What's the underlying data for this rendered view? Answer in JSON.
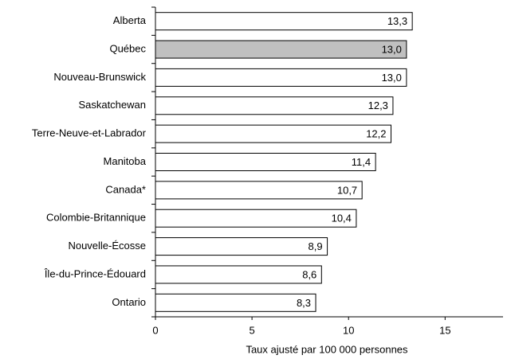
{
  "chart_data": {
    "type": "hbar",
    "categories": [
      "Alberta",
      "Québec",
      "Nouveau-Brunswick",
      "Saskatchewan",
      "Terre-Neuve-et-Labrador",
      "Manitoba",
      "Canada*",
      "Colombie-Britannique",
      "Nouvelle-Écosse",
      "Île-du-Prince-Édouard",
      "Ontario"
    ],
    "values": [
      13.3,
      13.0,
      13.0,
      12.3,
      12.2,
      11.4,
      10.7,
      10.4,
      8.9,
      8.6,
      8.3
    ],
    "value_labels": [
      "13,3",
      "13,0",
      "13,0",
      "12,3",
      "12,2",
      "11,4",
      "10,7",
      "10,4",
      "8,9",
      "8,6",
      "8,3"
    ],
    "colors": [
      "#ffffff",
      "#c0c0c0",
      "#ffffff",
      "#ffffff",
      "#ffffff",
      "#ffffff",
      "#ffffff",
      "#ffffff",
      "#ffffff",
      "#ffffff",
      "#ffffff"
    ],
    "xlim": [
      0,
      18
    ],
    "xticks": [
      0,
      5,
      10,
      15
    ],
    "x_label": "Taux ajusté par 100 000  personnes"
  }
}
